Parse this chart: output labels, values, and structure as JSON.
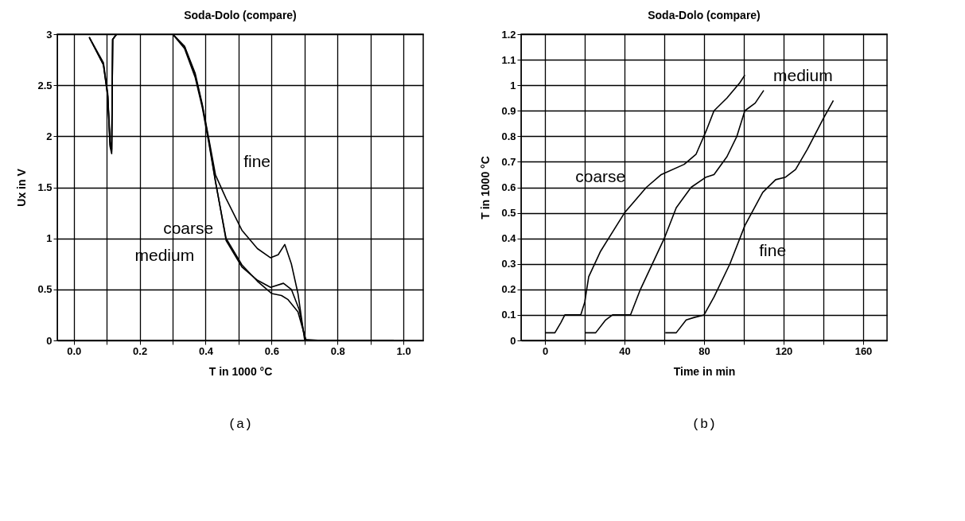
{
  "chart_data": [
    {
      "type": "line",
      "title": "Soda-Dolo (compare)",
      "xlabel": "T in 1000 °C",
      "ylabel": "Ux in V",
      "annotations": [
        "(a)"
      ],
      "xlim": [
        -0.05,
        1.06
      ],
      "ylim": [
        0,
        3
      ],
      "xticks": [
        {
          "value": 0,
          "label": "0.0"
        },
        {
          "value": 0.1,
          "label": null
        },
        {
          "value": 0.2,
          "label": "0.2"
        },
        {
          "value": 0.3,
          "label": null
        },
        {
          "value": 0.4,
          "label": "0.4"
        },
        {
          "value": 0.5,
          "label": null
        },
        {
          "value": 0.6,
          "label": "0.6"
        },
        {
          "value": 0.7,
          "label": null
        },
        {
          "value": 0.8,
          "label": "0.8"
        },
        {
          "value": 0.9,
          "label": null
        },
        {
          "value": 1,
          "label": "1.0"
        }
      ],
      "yticks": [
        0,
        0.5,
        1,
        1.5,
        2,
        2.5,
        3
      ],
      "grid": true,
      "series": [
        {
          "name": "fine",
          "color": "#000000",
          "x": [
            0.047,
            0.09,
            0.103,
            0.11,
            0.115,
            0.118,
            0.13,
            0.3,
            0.336,
            0.368,
            0.39,
            0.41,
            0.43,
            0.462,
            0.51,
            0.557,
            0.597,
            0.62,
            0.64,
            0.66,
            0.68,
            0.7,
            0.75,
            0.85,
            0.97
          ],
          "values": [
            2.97,
            2.7,
            2.39,
            1.9,
            1.83,
            2.95,
            3,
            3,
            2.88,
            2.62,
            2.31,
            1.97,
            1.62,
            1.39,
            1.08,
            0.9,
            0.81,
            0.84,
            0.94,
            0.75,
            0.46,
            0.01,
            0,
            0,
            0
          ]
        },
        {
          "name": "coarse",
          "color": "#000000",
          "x": [
            0.047,
            0.09,
            0.103,
            0.11,
            0.115,
            0.118,
            0.13,
            0.3,
            0.336,
            0.368,
            0.39,
            0.41,
            0.43,
            0.462,
            0.51,
            0.557,
            0.6,
            0.63,
            0.65,
            0.68,
            0.7,
            0.705,
            0.75,
            0.85,
            0.97
          ],
          "values": [
            2.97,
            2.72,
            2.42,
            1.95,
            1.87,
            2.95,
            3,
            3,
            2.86,
            2.58,
            2.28,
            1.93,
            1.55,
            1,
            0.74,
            0.58,
            0.46,
            0.44,
            0.4,
            0.28,
            0.05,
            0,
            0,
            0,
            0
          ]
        },
        {
          "name": "medium",
          "color": "#000000",
          "x": [
            0.047,
            0.09,
            0.103,
            0.11,
            0.115,
            0.118,
            0.13,
            0.3,
            0.336,
            0.368,
            0.39,
            0.41,
            0.43,
            0.462,
            0.51,
            0.557,
            0.597,
            0.636,
            0.66,
            0.684,
            0.7,
            0.704,
            0.75,
            0.85,
            0.97
          ],
          "values": [
            2.97,
            2.7,
            2.4,
            1.92,
            1.85,
            2.95,
            3,
            3,
            2.88,
            2.6,
            2.3,
            1.95,
            1.56,
            0.98,
            0.72,
            0.59,
            0.52,
            0.56,
            0.5,
            0.3,
            0.04,
            0,
            0,
            0,
            0
          ]
        }
      ]
    },
    {
      "type": "line",
      "title": "Soda-Dolo (compare)",
      "xlabel": "Time in min",
      "ylabel": "T in 1000 °C",
      "annotations": [
        "(b)"
      ],
      "xlim": [
        -12,
        172
      ],
      "ylim": [
        0,
        1.2
      ],
      "xticks": [
        0,
        {
          "value": 20,
          "label": null
        },
        40,
        {
          "value": 60,
          "label": null
        },
        80,
        {
          "value": 100,
          "label": null
        },
        120,
        {
          "value": 140,
          "label": null
        },
        160
      ],
      "yticks": [
        0,
        0.1,
        0.2,
        0.3,
        0.4,
        0.5,
        0.6,
        0.7,
        0.8,
        0.9,
        1,
        1.1,
        1.2
      ],
      "grid": true,
      "series": [
        {
          "name": "coarse",
          "color": "#000000",
          "x": [
            0,
            5,
            8,
            10,
            18,
            20,
            22,
            28,
            40,
            51,
            58.5,
            70,
            76,
            81,
            85,
            91.5,
            98,
            100.5
          ],
          "values": [
            0.03,
            0.03,
            0.07,
            0.1,
            0.1,
            0.15,
            0.25,
            0.35,
            0.5,
            0.6,
            0.65,
            0.69,
            0.73,
            0.82,
            0.9,
            0.95,
            1.01,
            1.04
          ]
        },
        {
          "name": "medium",
          "color": "#000000",
          "x": [
            20,
            25.5,
            30.5,
            34,
            43,
            48,
            60,
            66,
            73.5,
            81,
            85,
            91.5,
            96.5,
            100.5,
            105.7,
            110
          ],
          "values": [
            0.03,
            0.03,
            0.08,
            0.1,
            0.1,
            0.2,
            0.4,
            0.52,
            0.6,
            0.64,
            0.65,
            0.72,
            0.8,
            0.9,
            0.93,
            0.98
          ]
        },
        {
          "name": "fine",
          "color": "#000000",
          "x": [
            60.5,
            66,
            71,
            75,
            80,
            85,
            93,
            100.5,
            109.5,
            116,
            121,
            126,
            132,
            140,
            145
          ],
          "values": [
            0.03,
            0.03,
            0.08,
            0.09,
            0.1,
            0.17,
            0.3,
            0.45,
            0.58,
            0.63,
            0.64,
            0.67,
            0.75,
            0.87,
            0.94
          ]
        }
      ]
    }
  ]
}
